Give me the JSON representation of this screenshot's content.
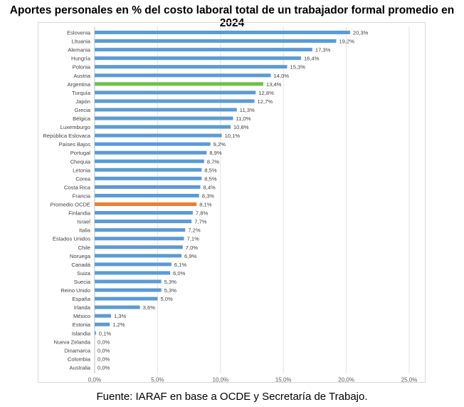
{
  "chart_data": {
    "type": "bar",
    "orientation": "horizontal",
    "title": "Aportes personales en % del costo laboral total de un trabajador formal promedio en 2024",
    "source": "Fuente: IARAF en base a OCDE y Secretaría de Trabajo.",
    "categories": [
      "Eslovenia",
      "Lituania",
      "Alemania",
      "Hungría",
      "Polonia",
      "Austria",
      "Argentina",
      "Turquía",
      "Japón",
      "Grecia",
      "Bélgica",
      "Luxemburgo",
      "República Eslovaca",
      "Países Bajos",
      "Portugal",
      "Chequia",
      "Letonia",
      "Corea",
      "Costa Rica",
      "Francia",
      "Promedio OCDE",
      "Finlandia",
      "Israel",
      "Italia",
      "Estados Unidos",
      "Chile",
      "Noruega",
      "Canadá",
      "Suiza",
      "Suecia",
      "Reino Unido",
      "España",
      "Irlanda",
      "México",
      "Estonia",
      "Islandia",
      "Nueva Zelanda",
      "Dinamarca",
      "Colombia",
      "Australia"
    ],
    "values": [
      20.3,
      19.2,
      17.3,
      16.4,
      15.3,
      14.0,
      13.4,
      12.8,
      12.7,
      11.3,
      11.0,
      10.8,
      10.1,
      9.2,
      8.9,
      8.7,
      8.5,
      8.5,
      8.4,
      8.3,
      8.1,
      7.8,
      7.7,
      7.2,
      7.1,
      7.0,
      6.9,
      6.1,
      6.0,
      5.3,
      5.3,
      5.0,
      3.6,
      1.3,
      1.2,
      0.1,
      0.0,
      0.0,
      0.0,
      0.0
    ],
    "value_labels": [
      "20,3%",
      "19,2%",
      "17,3%",
      "16,4%",
      "15,3%",
      "14,0%",
      "13,4%",
      "12,8%",
      "12,7%",
      "11,3%",
      "11,0%",
      "10,8%",
      "10,1%",
      "9,2%",
      "8,9%",
      "8,7%",
      "8,5%",
      "8,5%",
      "8,4%",
      "8,3%",
      "8,1%",
      "7,8%",
      "7,7%",
      "7,2%",
      "7,1%",
      "7,0%",
      "6,9%",
      "6,1%",
      "6,0%",
      "5,3%",
      "5,3%",
      "5,0%",
      "3,6%",
      "1,3%",
      "1,2%",
      "0,1%",
      "0,0%",
      "0,0%",
      "0,0%",
      "0,0%"
    ],
    "highlights": {
      "Argentina": "#6cc04a",
      "Promedio OCDE": "#ed7d31"
    },
    "bar_color": "#5b9bd5",
    "xlim": [
      0,
      25
    ],
    "x_ticks": [
      0,
      5,
      10,
      15,
      20,
      25
    ],
    "x_tick_labels": [
      "0,0%",
      "5,0%",
      "10,0%",
      "15,0%",
      "20,0%",
      "25,0%"
    ],
    "xlabel": "",
    "ylabel": "",
    "grid": true,
    "legend": "none"
  }
}
